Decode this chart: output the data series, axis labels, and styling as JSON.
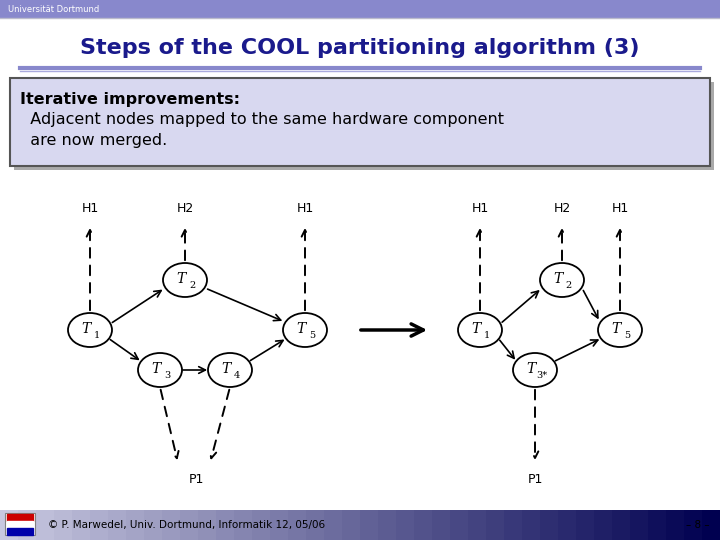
{
  "title": "Steps of the COOL partitioning algorithm (3)",
  "header_text_color": "#1a1a8c",
  "slide_bg": "#ffffff",
  "univ_text": "Universität Dortmund",
  "univ_bar_color": "#8888cc",
  "footer_text": "© P. Marwedel, Univ. Dortmund, Informatik 12, 05/06",
  "footer_page": "– 8 –",
  "box_text_bold": "Iterative improvements:",
  "box_text_line1": "  Adjacent nodes mapped to the same hardware component",
  "box_text_line2": "  are now merged.",
  "box_bg": "#d8d8f0",
  "box_border": "#555555",
  "footer_left_color": "#c8c8e0",
  "footer_right_color": "#000050"
}
